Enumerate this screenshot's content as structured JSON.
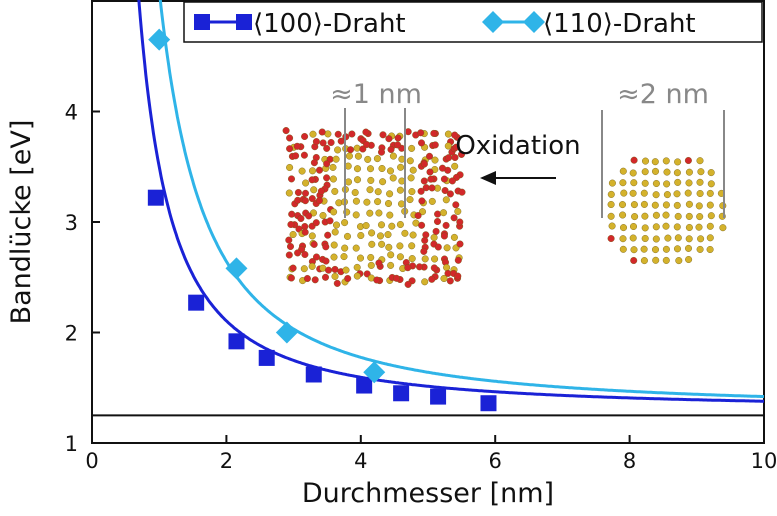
{
  "chart_data": {
    "type": "scatter",
    "xlabel": "Durchmesser [nm]",
    "ylabel": "Bandlücke [eV]",
    "xlim": [
      0,
      10
    ],
    "ylim": [
      1,
      5
    ],
    "x_ticks": [
      0,
      2,
      4,
      6,
      8,
      10
    ],
    "y_ticks": [
      1,
      2,
      3,
      4
    ],
    "bulk_gap": 1.25,
    "grid": false,
    "legend_position": "top-right",
    "series": [
      {
        "name": "⟨100⟩-Draht",
        "marker": "square",
        "color": "#1a22d6",
        "x": [
          0.95,
          1.55,
          2.15,
          2.6,
          3.3,
          4.05,
          4.6,
          5.15,
          5.9
        ],
        "y": [
          3.22,
          2.27,
          1.92,
          1.77,
          1.62,
          1.52,
          1.45,
          1.42,
          1.36
        ],
        "fit": {
          "a": 2.2,
          "p": 1.45,
          "offset": 1.3
        }
      },
      {
        "name": "⟨110⟩-Draht",
        "marker": "diamond",
        "color": "#2fb4e8",
        "x": [
          1.0,
          2.15,
          2.9,
          4.2
        ],
        "y": [
          4.65,
          2.58,
          2.0,
          1.64
        ],
        "fit": {
          "a": 3.8,
          "p": 1.5,
          "offset": 1.3
        }
      }
    ]
  },
  "annotations": {
    "scale_small": "≈1 nm",
    "scale_large": "≈2 nm",
    "arrow_label": "Oxidation"
  },
  "colors": {
    "silicon_atom": "#d4b22c",
    "oxygen_atom": "#d2282a"
  }
}
